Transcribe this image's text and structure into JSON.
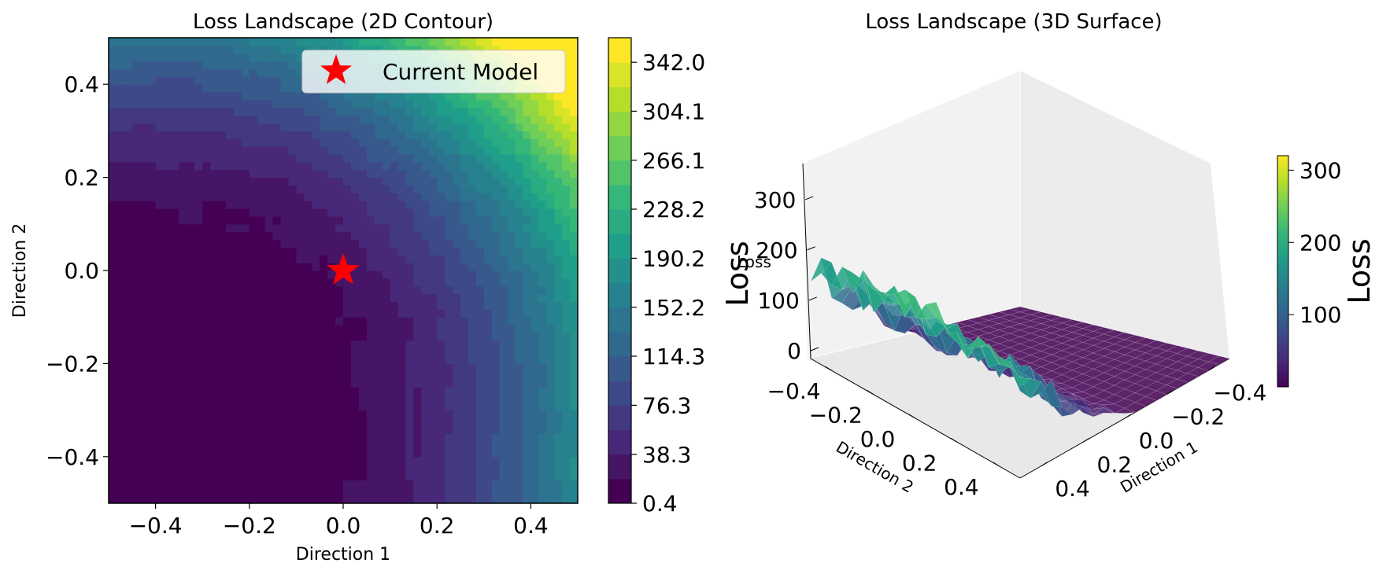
{
  "colors": {
    "viridis": [
      "#440154",
      "#482878",
      "#3e4989",
      "#31688e",
      "#26828e",
      "#1f9e89",
      "#35b779",
      "#6ece58",
      "#b5de2b",
      "#fde725"
    ],
    "marker": "#ff0000"
  },
  "chart_data": [
    {
      "type": "heatmap",
      "title": "Loss Landscape (2D Contour)",
      "xlabel": "Direction 1",
      "ylabel": "Direction 2",
      "xlim": [
        -0.5,
        0.5
      ],
      "ylim": [
        -0.5,
        0.5
      ],
      "x_ticks": [
        "−0.4",
        "−0.2",
        "0.0",
        "0.2",
        "0.4"
      ],
      "y_ticks": [
        "0.4",
        "0.2",
        "0.0",
        "−0.2",
        "−0.4"
      ],
      "grid": false,
      "legend": {
        "position": "top-right",
        "entries": [
          "Current Model"
        ]
      },
      "marker_point": {
        "label": "Current Model",
        "x": 0.0,
        "y": 0.0,
        "symbol": "star",
        "color": "#ff0000"
      },
      "colorbar": {
        "range": [
          0.4,
          361
        ],
        "ticks": [
          "0.4",
          "38.3",
          "76.3",
          "114.3",
          "152.2",
          "190.2",
          "228.2",
          "266.1",
          "304.1",
          "342.0"
        ],
        "colormap": "viridis"
      },
      "z_range": [
        0.4,
        361
      ],
      "contour_levels": 19,
      "shape": "loss is near minimum in the lower-left region and rises toward the top-right corner (x=0.5, y=0.5)"
    },
    {
      "type": "surface3d",
      "title": "Loss Landscape (3D Surface)",
      "xlabel": "Direction 1",
      "ylabel": "Direction 2",
      "zlabel": "Loss",
      "zlabel_small": "Loss",
      "x_ticks": [
        "−0.4",
        "−0.2",
        "0.0",
        "0.2",
        "0.4"
      ],
      "y_ticks": [
        "−0.4",
        "−0.2",
        "0.0",
        "0.2",
        "0.4"
      ],
      "z_ticks": [
        "0",
        "100",
        "200",
        "300"
      ],
      "zlim": [
        0,
        360
      ],
      "colorbar": {
        "label": "Loss",
        "range": [
          0,
          320
        ],
        "ticks": [
          "100",
          "200",
          "300"
        ],
        "colormap": "viridis"
      }
    }
  ]
}
